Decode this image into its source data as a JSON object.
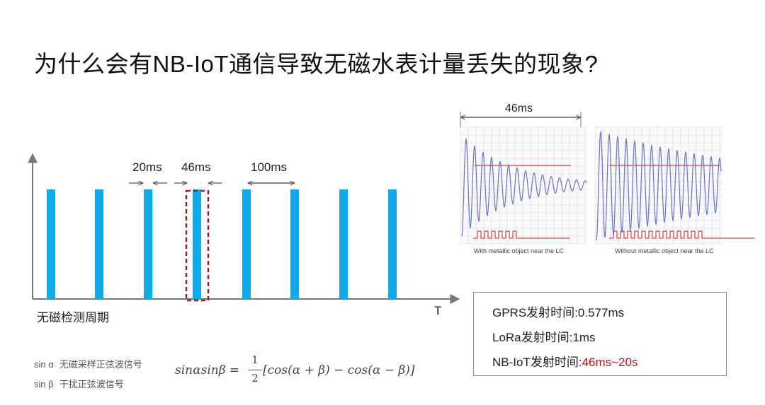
{
  "title": "为什么会有NB-IoT通信导致无磁水表计量丢失的现象?",
  "diagram": {
    "labels": {
      "gap": "20ms",
      "pulse": "46ms",
      "period": "100ms"
    },
    "t_axis": "T",
    "caption": "无磁检测周期",
    "colors": {
      "pulse": "#12a9e8",
      "highlight": "#a01f24",
      "axis": "#777777"
    }
  },
  "waveforms": {
    "duration_label": "46ms",
    "left_caption": "With metallic object near the LC",
    "right_caption": "Without metallic object near the LC"
  },
  "tx_times": {
    "gprs": "GPRS发射时间:0.577ms",
    "lora": "LoRa发射时间:1ms",
    "nbiot_label": "NB-IoT发射时间:",
    "nbiot_value": "46ms~20s"
  },
  "legend": {
    "line1_symbol": "sin α",
    "line1_desc": "无磁采样正弦波信号",
    "line2_symbol": "sin β",
    "line2_desc": "干扰正弦波信号"
  },
  "formula": {
    "lhs": "sinαsinβ =",
    "num": "1",
    "den": "2",
    "rhs": "[cos(α + β) − cos(α − β)]"
  }
}
